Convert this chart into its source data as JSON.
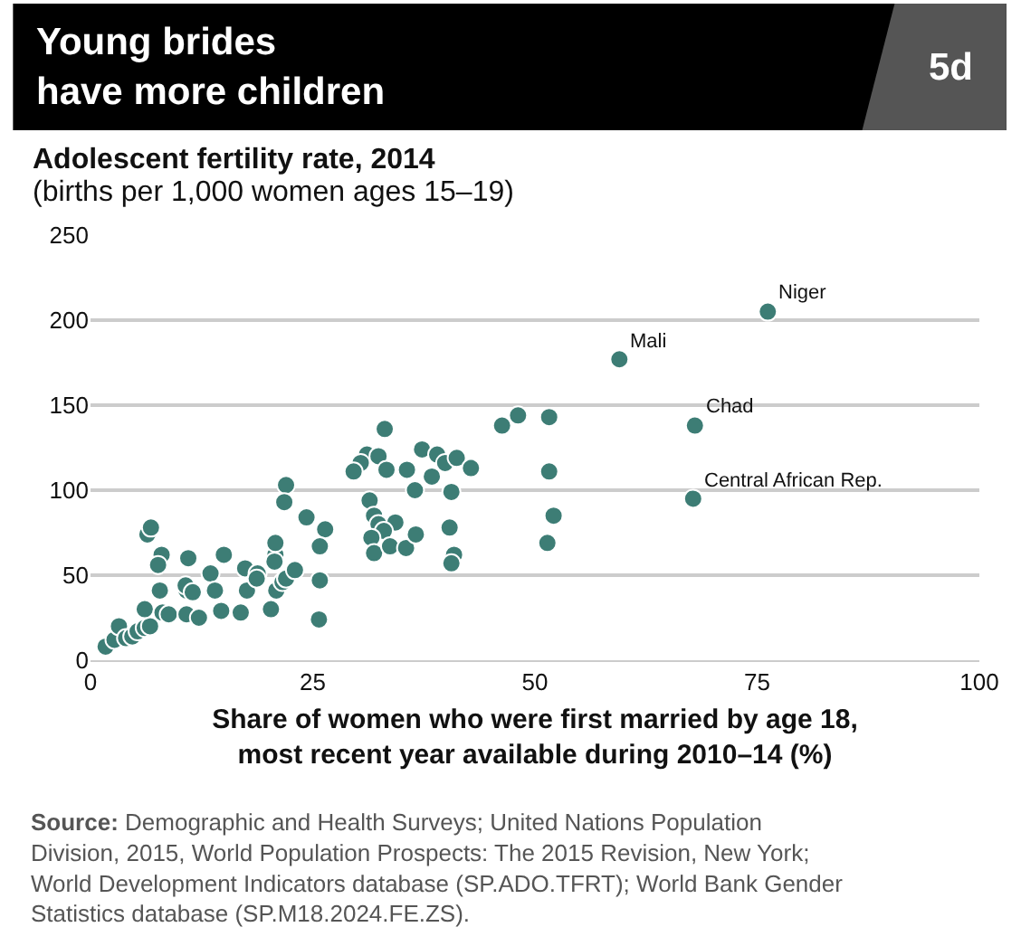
{
  "chart_data": {
    "type": "scatter",
    "title": "Young brides\nhave more children",
    "subtitle": "(births per 1,000 women ages 15–19)",
    "ylabel": "Adolescent fertility rate, 2014",
    "xlabel": "Share of women who were first married by age 18,\nmost recent year available during 2010–14 (%)",
    "annotations": [
      "5d",
      {
        "text": "Niger",
        "x": 76.2,
        "y": 205
      },
      {
        "text": "Mali",
        "x": 59.5,
        "y": 177
      },
      {
        "text": "Chad",
        "x": 68,
        "y": 138
      },
      {
        "text": "Central African Rep.",
        "x": 67.8,
        "y": 95
      },
      "Source: Demographic and Health Surveys; United Nations Population Division, 2015, World Population Prospects: The 2015 Revision, New York; World Development Indicators database (SP.ADO.TFRT); World Bank Gender Statistics database (SP.M18.2024.FE.ZS)."
    ],
    "x": [
      1.7,
      2.7,
      3.2,
      4,
      4.7,
      5.3,
      6.1,
      6.7,
      6.1,
      6.4,
      6.8,
      8,
      7.6,
      7.8,
      8.1,
      8.8,
      10.8,
      12.2,
      10.8,
      10.7,
      11.5,
      11,
      13.5,
      14,
      15,
      14.7,
      16.9,
      17.4,
      17.6,
      18.8,
      18.7,
      20.3,
      20.9,
      21.6,
      22,
      20.8,
      20.8,
      20.7,
      23,
      22,
      21.8,
      24.3,
      26.4,
      25.8,
      25.8,
      25.7,
      33.1,
      46.3,
      48.1,
      51.6,
      51.6,
      52.1,
      51.4,
      31.1,
      30.4,
      29.6,
      32.4,
      33.3,
      35.6,
      37.3,
      39,
      39.9,
      41.2,
      42.8,
      38.4,
      36.5,
      40.6,
      31.4,
      31.9,
      32.4,
      34.3,
      33,
      31.6,
      31.9,
      33.7,
      35.5,
      36.6,
      40.4,
      40.9,
      40.6,
      76.2,
      59.5,
      68,
      67.8
    ],
    "values": [
      8,
      12,
      20,
      13,
      14,
      17,
      19,
      20,
      30,
      74,
      78,
      62,
      56,
      41,
      28,
      27,
      27,
      25,
      41,
      44,
      40,
      60,
      51,
      41,
      62,
      29,
      28,
      54,
      41,
      51,
      48,
      30,
      41,
      46,
      48,
      62,
      69,
      58,
      53,
      103,
      93,
      84,
      77,
      67,
      47,
      24,
      136,
      138,
      144,
      143,
      111,
      85,
      69,
      121,
      116,
      111,
      120,
      112,
      112,
      124,
      121,
      116,
      119,
      113,
      108,
      100,
      99,
      94,
      85,
      80,
      81,
      76,
      72,
      63,
      67,
      66,
      74,
      78,
      62,
      57,
      205,
      177,
      138,
      95
    ],
    "color": "#3d7d75",
    "marker": "circle",
    "xlim": [
      0,
      100
    ],
    "ylim": [
      0,
      250
    ],
    "xticks": [
      0,
      25,
      50,
      75,
      100
    ],
    "yticks": [
      0,
      50,
      100,
      150,
      200,
      250
    ],
    "grid": "y"
  }
}
